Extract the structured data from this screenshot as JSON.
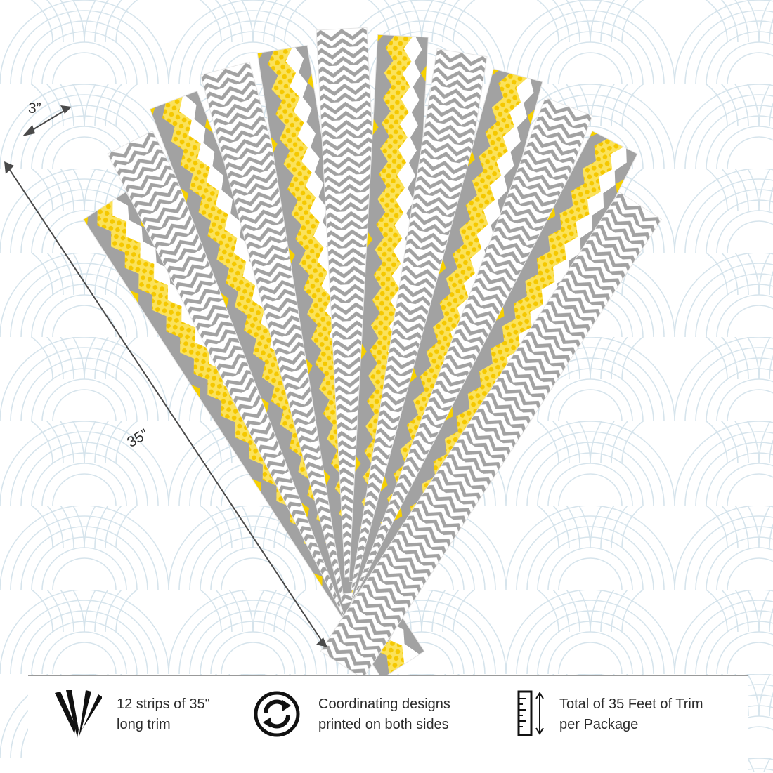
{
  "dimensions": {
    "width_label": "3”",
    "length_label": "35”"
  },
  "features": [
    {
      "icon": "fan-strips-icon",
      "line1": "12 strips of 35\"",
      "line2": "long trim"
    },
    {
      "icon": "reversible-arrows-icon",
      "line1": "Coordinating designs",
      "line2": "printed on both sides"
    },
    {
      "icon": "ruler-length-icon",
      "line1": "Total of 35 Feet of Trim",
      "line2": "per Package"
    }
  ],
  "colors": {
    "yellow": "#F7D417",
    "gray": "#A2A2A2",
    "background_scallop": "#D6E4EC",
    "text": "#2B2B2B"
  }
}
